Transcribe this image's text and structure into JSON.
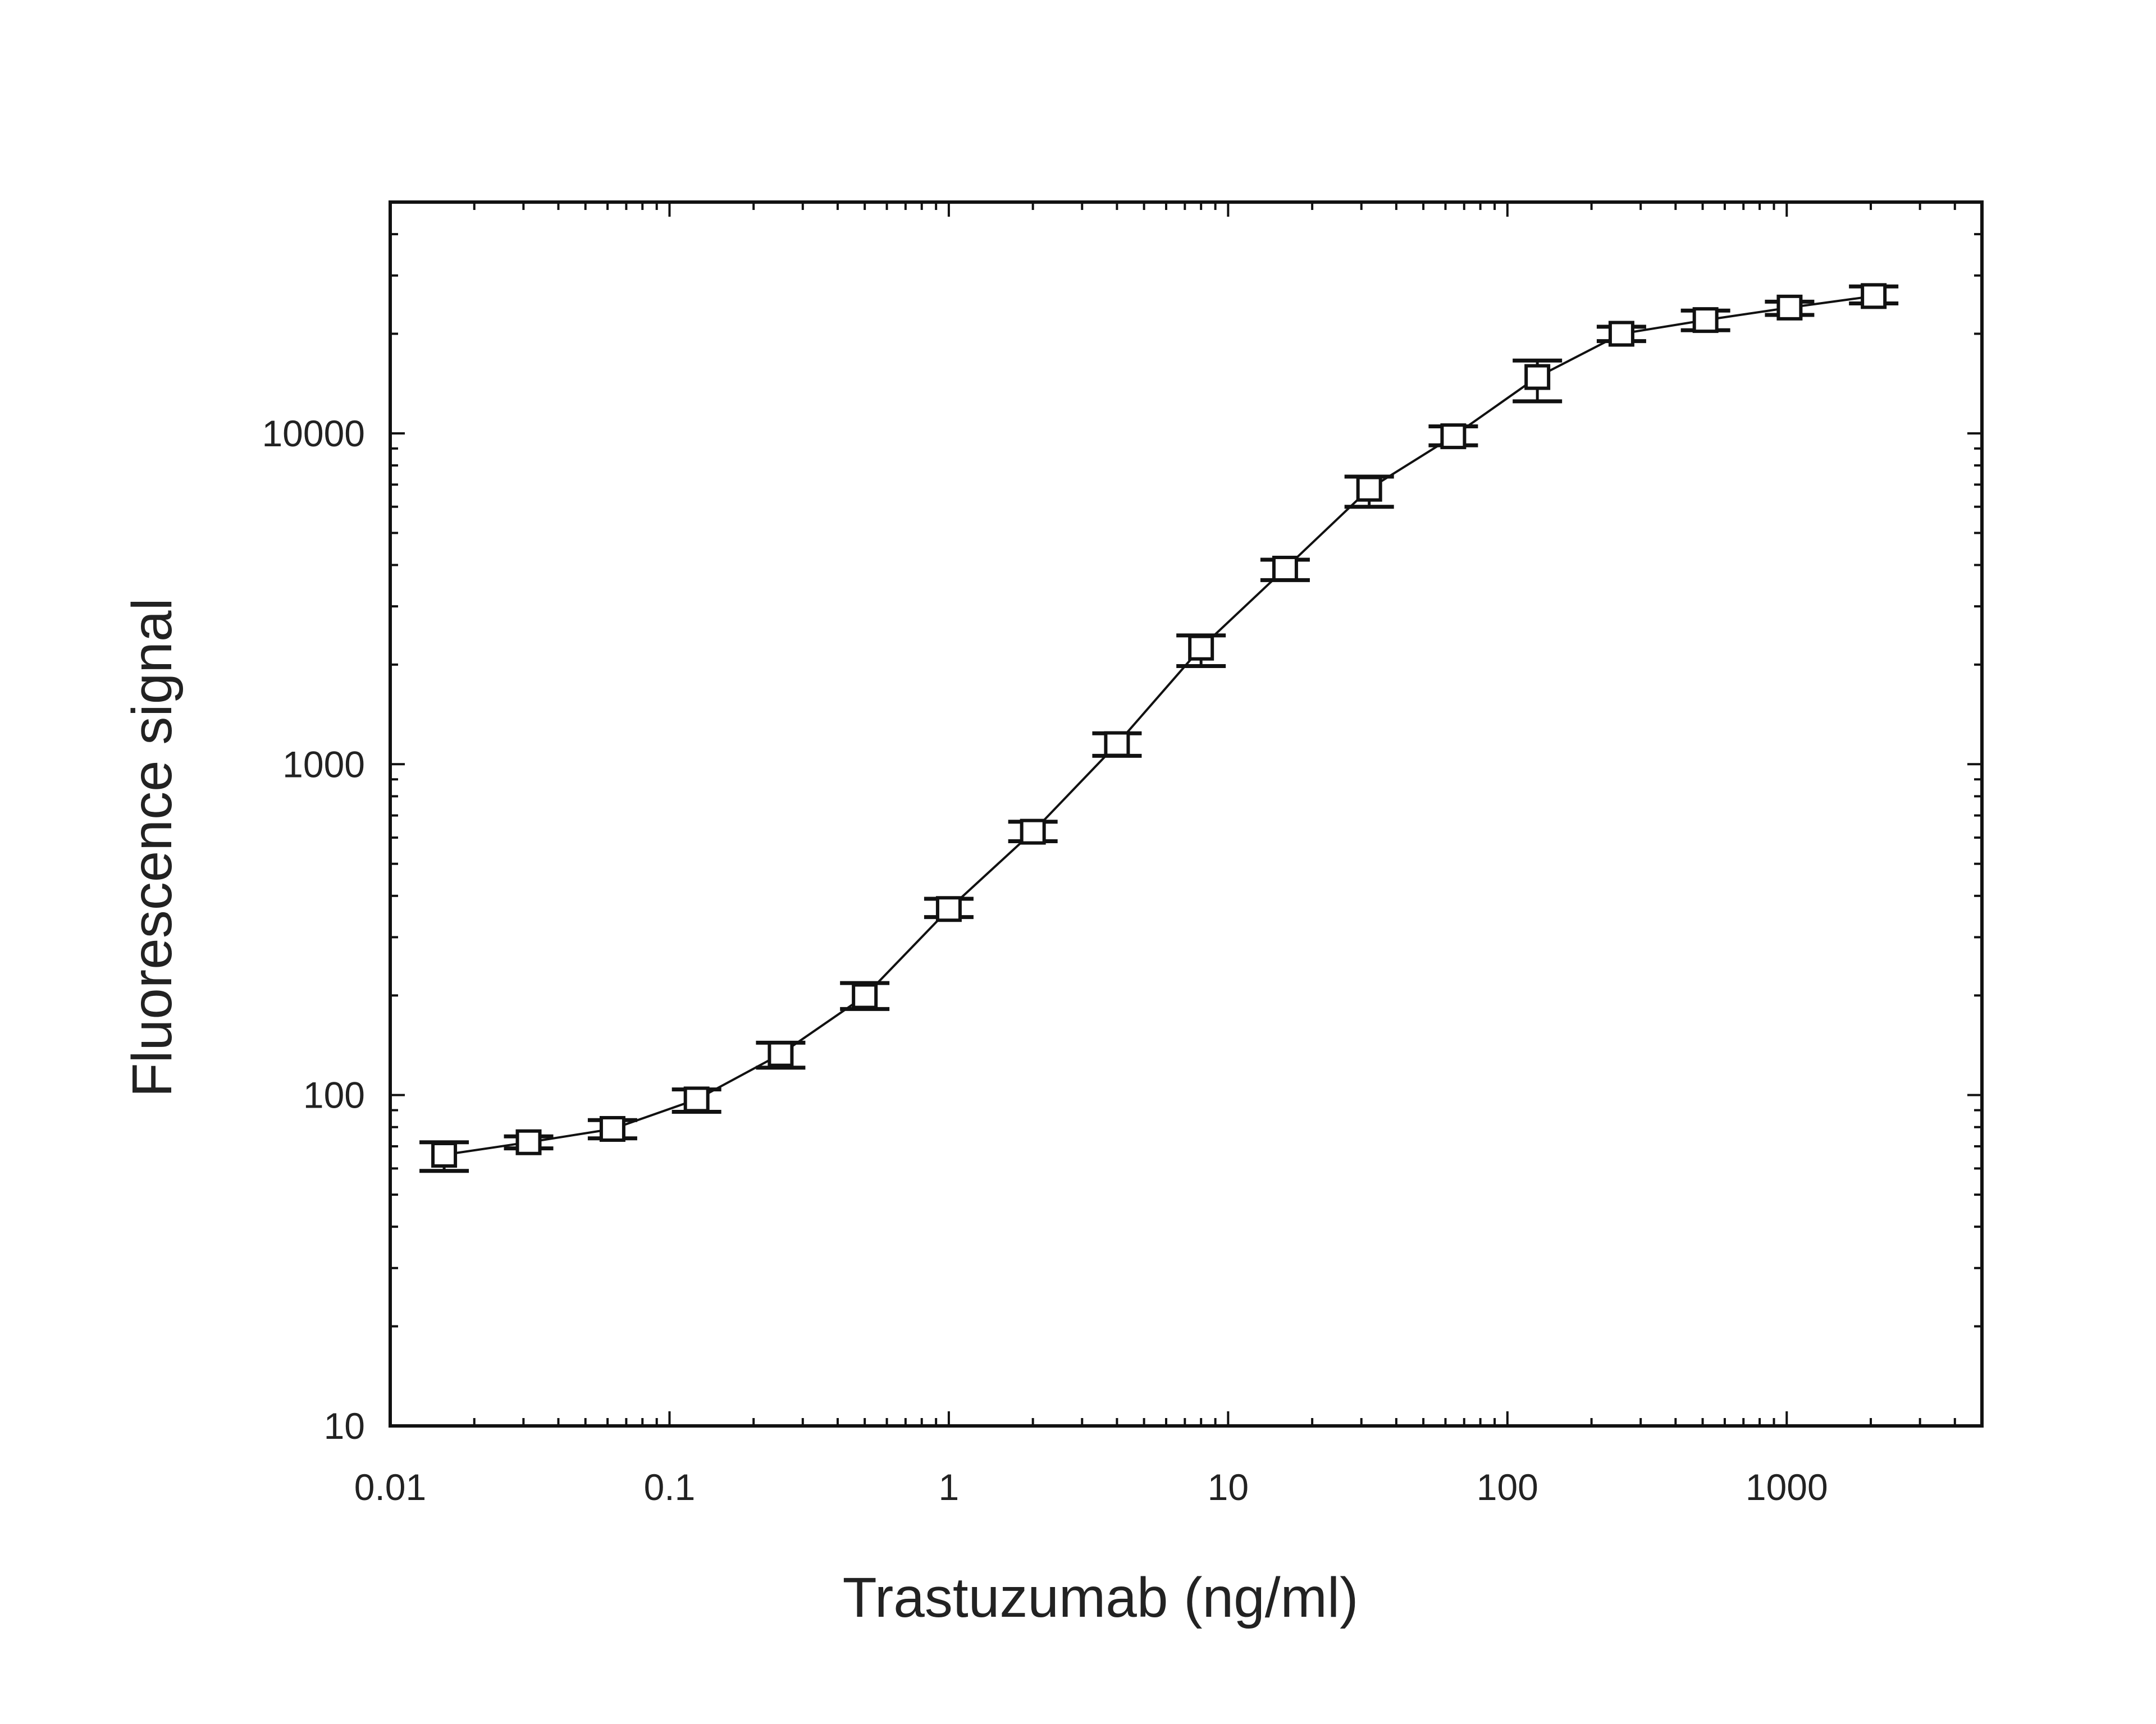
{
  "chart_data": {
    "type": "scatter",
    "title": "",
    "xlabel": "Trastuzumab  (ng/ml)",
    "ylabel": "Fluorescence signal",
    "x_scale": "log",
    "y_scale": "log",
    "xlim": [
      0.01,
      5000
    ],
    "ylim": [
      10,
      50000
    ],
    "x_tick_labels": [
      "0.01",
      "0.1",
      "1",
      "10",
      "100",
      "1000"
    ],
    "x_tick_values": [
      0.01,
      0.1,
      1,
      10,
      100,
      1000
    ],
    "y_tick_labels": [
      "10",
      "100",
      "1000",
      "10000"
    ],
    "y_tick_values": [
      10,
      100,
      1000,
      10000
    ],
    "grid": false,
    "legend": "none",
    "marker": "open-square",
    "connect_points": true,
    "error_bars": true,
    "colors": {
      "ink": "#111111",
      "text": "#222222",
      "background": "#ffffff"
    },
    "series": [
      {
        "x": [
          0.0156,
          0.0313,
          0.0625,
          0.125,
          0.25,
          0.5,
          1,
          2,
          4,
          8,
          16,
          32,
          64,
          128,
          256,
          512,
          1024,
          2048
        ],
        "y": [
          66,
          72,
          79,
          97,
          133,
          199,
          365,
          625,
          1150,
          2250,
          3900,
          6800,
          9800,
          14800,
          20000,
          22000,
          24000,
          26000
        ],
        "y_low": [
          59,
          69,
          74,
          89,
          121,
          182,
          345,
          585,
          1060,
          1980,
          3600,
          6000,
          9200,
          12500,
          19000,
          20500,
          22800,
          24700
        ],
        "y_high": [
          72,
          75,
          84,
          104,
          144,
          218,
          392,
          670,
          1240,
          2450,
          4150,
          7400,
          10500,
          16600,
          21000,
          23500,
          25000,
          27800
        ]
      }
    ]
  }
}
